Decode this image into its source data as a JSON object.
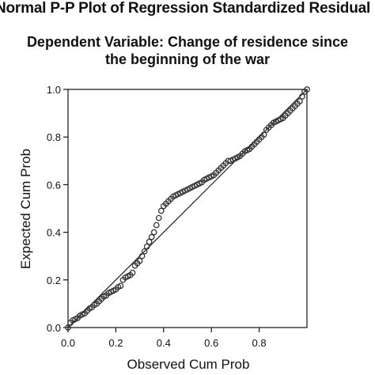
{
  "chart_data": {
    "type": "scatter",
    "title": "Normal P-P Plot of Regression Standardized Residual",
    "subtitle_line1": "Dependent Variable: Change of residence since",
    "subtitle_line2": "the beginning of the war",
    "xlabel": "Observed Cum Prob",
    "ylabel": "Expected Cum Prob",
    "xlim": [
      0,
      1
    ],
    "ylim": [
      0,
      1
    ],
    "x_ticks": [
      "0.0",
      "0.2",
      "0.4",
      "0.6",
      "0.8"
    ],
    "y_ticks": [
      "0.0",
      "0.2",
      "0.4",
      "0.6",
      "0.8",
      "1.0"
    ],
    "x_tick_values": [
      0,
      0.2,
      0.4,
      0.6,
      0.8
    ],
    "y_tick_values": [
      0,
      0.2,
      0.4,
      0.6,
      0.8,
      1.0
    ],
    "reference_line": [
      [
        0,
        0
      ],
      [
        1,
        1
      ]
    ],
    "grid": false,
    "marker_color": "#333333",
    "series": [
      {
        "x": [
          0.0,
          0.01,
          0.02,
          0.03,
          0.04,
          0.05,
          0.06,
          0.07,
          0.08,
          0.09,
          0.1,
          0.11,
          0.12,
          0.13,
          0.14,
          0.15,
          0.16,
          0.17,
          0.18,
          0.19,
          0.2,
          0.21,
          0.22,
          0.23,
          0.24,
          0.25,
          0.26,
          0.27,
          0.28,
          0.29,
          0.3,
          0.31,
          0.32,
          0.33,
          0.34,
          0.35,
          0.36,
          0.37,
          0.38,
          0.39,
          0.4,
          0.41,
          0.42,
          0.43,
          0.44,
          0.45,
          0.46,
          0.47,
          0.48,
          0.49,
          0.5,
          0.51,
          0.52,
          0.53,
          0.54,
          0.55,
          0.56,
          0.57,
          0.58,
          0.59,
          0.6,
          0.61,
          0.62,
          0.63,
          0.64,
          0.65,
          0.66,
          0.67,
          0.68,
          0.69,
          0.7,
          0.71,
          0.72,
          0.73,
          0.74,
          0.75,
          0.76,
          0.77,
          0.78,
          0.79,
          0.8,
          0.81,
          0.82,
          0.83,
          0.84,
          0.85,
          0.86,
          0.87,
          0.88,
          0.89,
          0.9,
          0.91,
          0.92,
          0.93,
          0.94,
          0.95,
          0.96,
          0.97,
          0.98,
          0.99,
          1.0
        ],
        "y": [
          0.0,
          0.02,
          0.03,
          0.035,
          0.04,
          0.05,
          0.055,
          0.06,
          0.07,
          0.08,
          0.085,
          0.095,
          0.1,
          0.11,
          0.12,
          0.13,
          0.135,
          0.145,
          0.15,
          0.155,
          0.16,
          0.17,
          0.175,
          0.2,
          0.21,
          0.215,
          0.22,
          0.23,
          0.26,
          0.27,
          0.28,
          0.3,
          0.32,
          0.34,
          0.36,
          0.38,
          0.4,
          0.43,
          0.46,
          0.49,
          0.51,
          0.52,
          0.53,
          0.54,
          0.55,
          0.555,
          0.56,
          0.565,
          0.57,
          0.575,
          0.58,
          0.585,
          0.59,
          0.595,
          0.6,
          0.605,
          0.61,
          0.62,
          0.625,
          0.63,
          0.635,
          0.64,
          0.65,
          0.66,
          0.67,
          0.68,
          0.69,
          0.7,
          0.7,
          0.705,
          0.71,
          0.715,
          0.72,
          0.73,
          0.74,
          0.745,
          0.75,
          0.76,
          0.77,
          0.78,
          0.79,
          0.8,
          0.81,
          0.83,
          0.84,
          0.85,
          0.86,
          0.865,
          0.87,
          0.875,
          0.88,
          0.89,
          0.9,
          0.91,
          0.92,
          0.93,
          0.94,
          0.95,
          0.97,
          0.99,
          1.0
        ]
      }
    ]
  }
}
